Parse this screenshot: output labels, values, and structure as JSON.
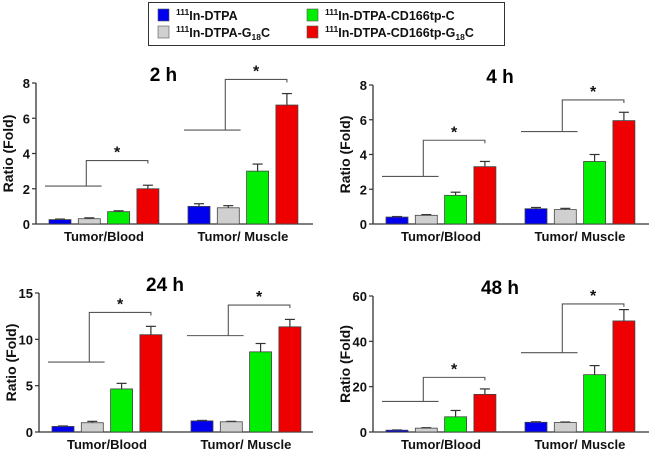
{
  "legend": {
    "placement": "top-center",
    "items": [
      {
        "sup": "111",
        "main": "In-DTPA",
        "sub": "",
        "tail": "",
        "color": "#0000ee"
      },
      {
        "sup": "111",
        "main": "In-DTPA-G",
        "sub": "18",
        "tail": "C",
        "color": "#d0d0d0"
      },
      {
        "sup": "111",
        "main": "In-DTPA-CD166tp-C",
        "sub": "",
        "tail": "",
        "color": "#00ee00"
      },
      {
        "sup": "111",
        "main": "In-DTPA-CD166tp-G",
        "sub": "18",
        "tail": "C",
        "color": "#ee0000"
      }
    ]
  },
  "chart_data": [
    {
      "type": "bar",
      "title": "2 h",
      "ylabel": "Ratio (Fold)",
      "ylim": [
        0,
        8
      ],
      "yticks": [
        0,
        2,
        4,
        6,
        8
      ],
      "categories": [
        "Tumor/Blood",
        "Tumor/ Muscle"
      ],
      "series": [
        {
          "values": [
            0.25,
            1.0
          ],
          "errors": [
            0.03,
            0.15
          ]
        },
        {
          "values": [
            0.3,
            0.92
          ],
          "errors": [
            0.05,
            0.12
          ]
        },
        {
          "values": [
            0.7,
            3.0
          ],
          "errors": [
            0.05,
            0.4
          ]
        },
        {
          "values": [
            2.0,
            6.75
          ],
          "errors": [
            0.2,
            0.65
          ]
        }
      ],
      "significance": [
        {
          "label": "*",
          "line": 2.15,
          "top": 3.6
        },
        {
          "label": "*",
          "line": 5.33,
          "top": 8.2
        }
      ]
    },
    {
      "type": "bar",
      "title": "4 h",
      "ylabel": "Ratio (Fold)",
      "ylim": [
        0,
        8
      ],
      "yticks": [
        0,
        2,
        4,
        6,
        8
      ],
      "categories": [
        "Tumor/Blood",
        "Tumor/ Muscle"
      ],
      "series": [
        {
          "values": [
            0.4,
            0.88
          ],
          "errors": [
            0.03,
            0.07
          ]
        },
        {
          "values": [
            0.5,
            0.83
          ],
          "errors": [
            0.04,
            0.07
          ]
        },
        {
          "values": [
            1.65,
            3.6
          ],
          "errors": [
            0.18,
            0.4
          ]
        },
        {
          "values": [
            3.3,
            5.95
          ],
          "errors": [
            0.3,
            0.48
          ]
        }
      ],
      "significance": [
        {
          "label": "*",
          "line": 2.74,
          "top": 4.82
        },
        {
          "label": "*",
          "line": 5.32,
          "top": 7.14
        }
      ]
    },
    {
      "type": "bar",
      "title": "24 h",
      "ylabel": "Ratio (Fold)",
      "ylim": [
        0,
        15
      ],
      "yticks": [
        0,
        5,
        10,
        15
      ],
      "categories": [
        "Tumor/Blood",
        "Tumor/ Muscle"
      ],
      "series": [
        {
          "values": [
            0.6,
            1.2
          ],
          "errors": [
            0.05,
            0.05
          ]
        },
        {
          "values": [
            1.0,
            1.1
          ],
          "errors": [
            0.15,
            0.05
          ]
        },
        {
          "values": [
            4.65,
            8.65
          ],
          "errors": [
            0.6,
            0.9
          ]
        },
        {
          "values": [
            10.5,
            11.35
          ],
          "errors": [
            0.9,
            0.8
          ]
        }
      ],
      "significance": [
        {
          "label": "*",
          "line": 7.55,
          "top": 12.9
        },
        {
          "label": "*",
          "line": 10.4,
          "top": 13.7
        }
      ]
    },
    {
      "type": "bar",
      "title": "48 h",
      "ylabel": "Ratio (Fold)",
      "ylim": [
        0,
        60
      ],
      "yticks": [
        0,
        20,
        40,
        60
      ],
      "categories": [
        "Tumor/Blood",
        "Tumor/ Muscle"
      ],
      "series": [
        {
          "values": [
            0.8,
            4.3
          ],
          "errors": [
            0.1,
            0.2
          ]
        },
        {
          "values": [
            1.7,
            4.2
          ],
          "errors": [
            0.2,
            0.2
          ]
        },
        {
          "values": [
            6.7,
            25.3
          ],
          "errors": [
            2.8,
            4.0
          ]
        },
        {
          "values": [
            16.6,
            49.0
          ],
          "errors": [
            2.4,
            5.0
          ]
        }
      ],
      "significance": [
        {
          "label": "*",
          "line": 13.5,
          "top": 24.1
        },
        {
          "label": "*",
          "line": 35,
          "top": 56.5
        }
      ]
    }
  ]
}
